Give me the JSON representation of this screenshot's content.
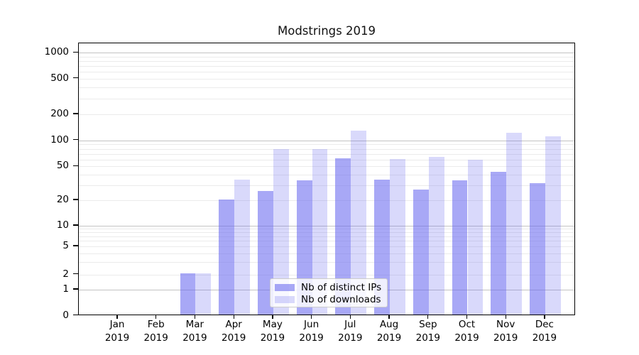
{
  "title": "Modstrings 2019",
  "chart_data": {
    "type": "bar",
    "title": "Modstrings 2019",
    "categories": [
      "Jan 2019",
      "Feb 2019",
      "Mar 2019",
      "Apr 2019",
      "May 2019",
      "Jun 2019",
      "Jul 2019",
      "Aug 2019",
      "Sep 2019",
      "Oct 2019",
      "Nov 2019",
      "Dec 2019"
    ],
    "series": [
      {
        "name": "Nb of distinct IPs",
        "color": "rgba(105,105,240,0.58)",
        "values": [
          0,
          0,
          2,
          20,
          25,
          33,
          60,
          34,
          26,
          33,
          42,
          31
        ]
      },
      {
        "name": "Nb of downloads",
        "color": "rgba(105,105,240,0.25)",
        "values": [
          0,
          0,
          2,
          34,
          77,
          77,
          125,
          59,
          63,
          58,
          118,
          108
        ]
      }
    ],
    "y_axis": {
      "scale": "symlog-like",
      "tick_labels": [
        "0",
        "1",
        "2",
        "5",
        "10",
        "20",
        "50",
        "100",
        "200",
        "500",
        "1000"
      ],
      "tick_values": [
        0,
        1,
        2,
        5,
        10,
        20,
        50,
        100,
        200,
        500,
        1000
      ],
      "major_gridlines": [
        1,
        10,
        100,
        1000
      ],
      "minor_gridlines": [
        2,
        3,
        4,
        5,
        6,
        7,
        8,
        9,
        20,
        30,
        40,
        50,
        60,
        70,
        80,
        90,
        200,
        300,
        400,
        500,
        600,
        700,
        800,
        900
      ],
      "range": [
        0,
        1300
      ]
    },
    "x_axis": {
      "year_line": "2019"
    },
    "grid": true,
    "legend": {
      "position": "lower-center",
      "entries": [
        "Nb of distinct IPs",
        "Nb of downloads"
      ]
    },
    "colors": {
      "bar_base": "#6969f0",
      "grid_major": "#c3c3c3",
      "grid_minor": "#ebebeb",
      "axis": "#000000"
    }
  }
}
